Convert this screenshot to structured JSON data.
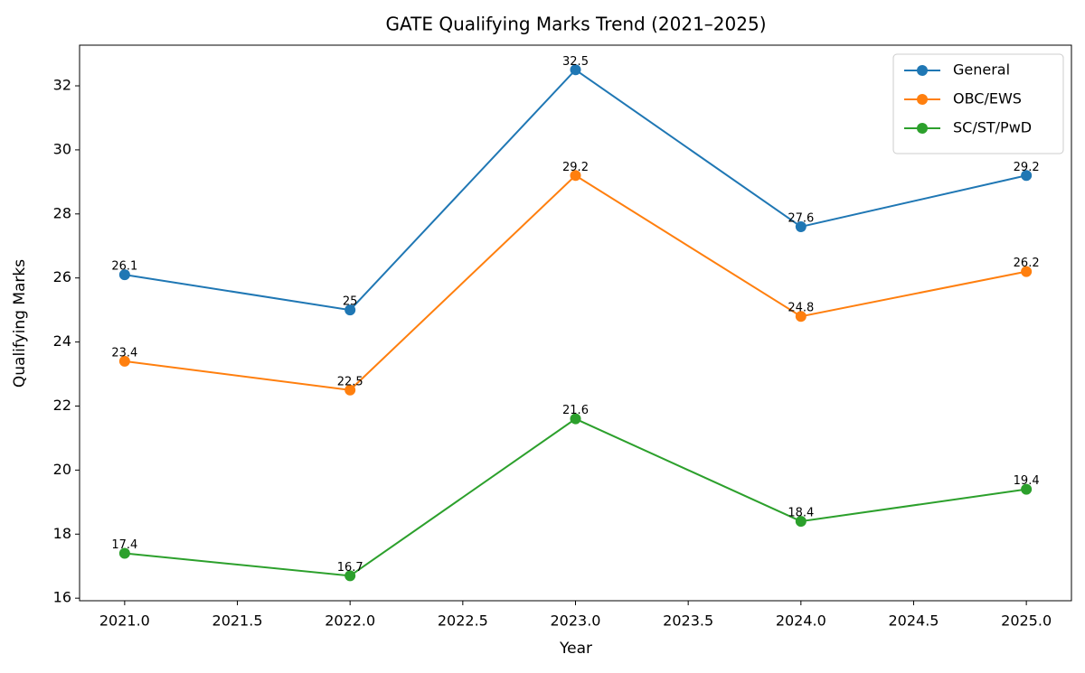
{
  "chart_data": {
    "type": "line",
    "title": "GATE Qualifying Marks Trend (2021–2025)",
    "xlabel": "Year",
    "ylabel": "Qualifying Marks",
    "x": [
      2021,
      2022,
      2023,
      2024,
      2025
    ],
    "series": [
      {
        "name": "General",
        "color": "#1f77b4",
        "values": [
          26.1,
          25,
          32.5,
          27.6,
          29.2
        ]
      },
      {
        "name": "OBC/EWS",
        "color": "#ff7f0e",
        "values": [
          23.4,
          22.5,
          29.2,
          24.8,
          26.2
        ]
      },
      {
        "name": "SC/ST/PwD",
        "color": "#2ca02c",
        "values": [
          17.4,
          16.7,
          21.6,
          18.4,
          19.4
        ]
      }
    ],
    "xlim": [
      2020.8,
      2025.2
    ],
    "xticks": [
      {
        "value": 2021,
        "label": "2021.0"
      },
      2021.5,
      {
        "value": 2022,
        "label": "2022.0"
      },
      2022.5,
      {
        "value": 2023,
        "label": "2023.0"
      },
      2023.5,
      {
        "value": 2024,
        "label": "2024.0"
      },
      2024.5,
      {
        "value": 2025,
        "label": "2025.0"
      }
    ],
    "ylim": [
      15.92,
      33.27
    ],
    "yticks": [
      16,
      18,
      20,
      22,
      24,
      26,
      28,
      30,
      32
    ],
    "legend": "upper right",
    "grid": false
  }
}
